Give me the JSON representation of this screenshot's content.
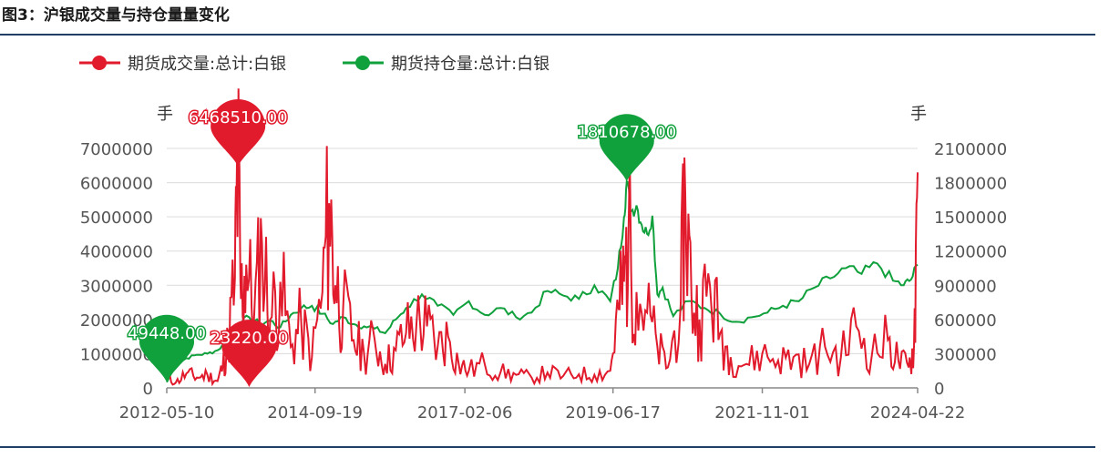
{
  "figure": {
    "title": "图3：沪银成交量与持仓量量变化"
  },
  "colors": {
    "volume": "#e11a2c",
    "open_interest": "#10a03c",
    "grid": "#dcdcdc",
    "axis_text": "#555555"
  },
  "chart_data": {
    "type": "line",
    "title": "",
    "legend": {
      "placement": "top-left",
      "entries": [
        "期货成交量:总计:白银",
        "期货持仓量:总计:白银"
      ]
    },
    "x_tick_labels": [
      "2012-05-10",
      "2014-09-19",
      "2017-02-06",
      "2019-06-17",
      "2021-11-01",
      "2024-04-22"
    ],
    "x_range": [
      "2012-05-10",
      "2024-04-22"
    ],
    "y_left": {
      "unit": "手",
      "ylim": [
        0,
        7000000
      ],
      "ticks": [
        "0",
        "1000000",
        "2000000",
        "3000000",
        "4000000",
        "5000000",
        "6000000",
        "7000000"
      ]
    },
    "y_right": {
      "unit": "手",
      "ylim": [
        0,
        2100000
      ],
      "ticks": [
        "0",
        "300000",
        "600000",
        "900000",
        "1200000",
        "1500000",
        "1800000",
        "2100000"
      ]
    },
    "grid": true,
    "series": [
      {
        "name": "期货成交量:总计:白银",
        "axis": "left",
        "points": [
          [
            "2012-05-10",
            300000
          ],
          [
            "2012-07-01",
            150000
          ],
          [
            "2012-09-01",
            420000
          ],
          [
            "2012-11-01",
            300000
          ],
          [
            "2013-01-01",
            380000
          ],
          [
            "2013-03-01",
            200000
          ],
          [
            "2013-04-01",
            650000
          ],
          [
            "2013-05-01",
            1300000
          ],
          [
            "2013-06-10",
            3200000
          ],
          [
            "2013-06-28",
            6468510
          ],
          [
            "2013-07-15",
            2600000
          ],
          [
            "2013-08-15",
            3600000
          ],
          [
            "2013-10-01",
            2200000
          ],
          [
            "2013-11-15",
            4200000
          ],
          [
            "2014-01-01",
            2000000
          ],
          [
            "2014-03-01",
            3100000
          ],
          [
            "2014-05-01",
            1200000
          ],
          [
            "2014-07-01",
            1900000
          ],
          [
            "2014-09-01",
            900000
          ],
          [
            "2014-11-01",
            2800000
          ],
          [
            "2014-12-10",
            5400000
          ],
          [
            "2015-01-15",
            3000000
          ],
          [
            "2015-03-01",
            2300000
          ],
          [
            "2015-05-01",
            1400000
          ],
          [
            "2015-07-01",
            1000000
          ],
          [
            "2015-09-01",
            1400000
          ],
          [
            "2015-11-01",
            700000
          ],
          [
            "2016-01-01",
            1100000
          ],
          [
            "2016-03-01",
            1600000
          ],
          [
            "2016-05-01",
            1900000
          ],
          [
            "2016-07-01",
            1800000
          ],
          [
            "2016-09-01",
            1200000
          ],
          [
            "2016-11-01",
            1500000
          ],
          [
            "2017-01-01",
            700000
          ],
          [
            "2017-03-01",
            500000
          ],
          [
            "2017-06-01",
            700000
          ],
          [
            "2017-09-01",
            450000
          ],
          [
            "2017-12-01",
            380000
          ],
          [
            "2018-03-01",
            300000
          ],
          [
            "2018-06-01",
            450000
          ],
          [
            "2018-09-01",
            350000
          ],
          [
            "2018-12-01",
            400000
          ],
          [
            "2019-03-01",
            380000
          ],
          [
            "2019-06-01",
            500000
          ],
          [
            "2019-07-20",
            2300000
          ],
          [
            "2019-08-20",
            3100000
          ],
          [
            "2019-09-15",
            4500000
          ],
          [
            "2019-11-01",
            2800000
          ],
          [
            "2020-01-01",
            2200000
          ],
          [
            "2020-03-01",
            1200000
          ],
          [
            "2020-05-01",
            600000
          ],
          [
            "2020-07-15",
            2500000
          ],
          [
            "2020-08-10",
            5700000
          ],
          [
            "2020-09-15",
            2700000
          ],
          [
            "2020-11-01",
            2000000
          ],
          [
            "2021-01-01",
            3000000
          ],
          [
            "2021-03-01",
            1600000
          ],
          [
            "2021-05-01",
            900000
          ],
          [
            "2021-08-01",
            700000
          ],
          [
            "2021-11-01",
            1000000
          ],
          [
            "2022-02-01",
            800000
          ],
          [
            "2022-05-01",
            900000
          ],
          [
            "2022-08-01",
            700000
          ],
          [
            "2022-11-01",
            1200000
          ],
          [
            "2023-02-01",
            900000
          ],
          [
            "2023-05-01",
            1800000
          ],
          [
            "2023-08-01",
            1000000
          ],
          [
            "2023-11-01",
            1400000
          ],
          [
            "2024-01-01",
            800000
          ],
          [
            "2024-03-01",
            600000
          ],
          [
            "2024-04-01",
            1200000
          ],
          [
            "2024-04-22",
            6300000
          ]
        ]
      },
      {
        "name": "期货持仓量:总计:白银",
        "axis": "right",
        "points": [
          [
            "2012-05-10",
            49448
          ],
          [
            "2012-07-01",
            200000
          ],
          [
            "2012-09-01",
            260000
          ],
          [
            "2012-11-01",
            290000
          ],
          [
            "2013-01-01",
            300000
          ],
          [
            "2013-03-01",
            330000
          ],
          [
            "2013-05-01",
            420000
          ],
          [
            "2013-07-01",
            560000
          ],
          [
            "2013-09-01",
            620000
          ],
          [
            "2013-11-01",
            560000
          ],
          [
            "2014-01-01",
            590000
          ],
          [
            "2014-03-01",
            530000
          ],
          [
            "2014-05-01",
            640000
          ],
          [
            "2014-07-01",
            700000
          ],
          [
            "2014-09-01",
            720000
          ],
          [
            "2014-11-01",
            650000
          ],
          [
            "2015-01-01",
            560000
          ],
          [
            "2015-03-01",
            620000
          ],
          [
            "2015-05-01",
            560000
          ],
          [
            "2015-07-01",
            540000
          ],
          [
            "2015-09-01",
            520000
          ],
          [
            "2015-11-01",
            480000
          ],
          [
            "2016-01-01",
            600000
          ],
          [
            "2016-03-01",
            700000
          ],
          [
            "2016-06-01",
            820000
          ],
          [
            "2016-09-01",
            720000
          ],
          [
            "2016-12-01",
            640000
          ],
          [
            "2017-03-01",
            760000
          ],
          [
            "2017-06-01",
            640000
          ],
          [
            "2017-09-01",
            700000
          ],
          [
            "2017-12-01",
            620000
          ],
          [
            "2018-03-01",
            660000
          ],
          [
            "2018-06-01",
            850000
          ],
          [
            "2018-09-01",
            810000
          ],
          [
            "2018-12-01",
            780000
          ],
          [
            "2019-03-01",
            900000
          ],
          [
            "2019-06-01",
            760000
          ],
          [
            "2019-07-15",
            1050000
          ],
          [
            "2019-08-20",
            1500000
          ],
          [
            "2019-09-05",
            1810678
          ],
          [
            "2019-10-01",
            1550000
          ],
          [
            "2019-11-01",
            1600000
          ],
          [
            "2019-12-01",
            1430000
          ],
          [
            "2020-01-01",
            1350000
          ],
          [
            "2020-02-01",
            1510000
          ],
          [
            "2020-03-01",
            820000
          ],
          [
            "2020-04-01",
            880000
          ],
          [
            "2020-06-01",
            630000
          ],
          [
            "2020-09-01",
            760000
          ],
          [
            "2020-12-01",
            700000
          ],
          [
            "2021-03-01",
            650000
          ],
          [
            "2021-06-01",
            580000
          ],
          [
            "2021-09-01",
            620000
          ],
          [
            "2021-12-01",
            660000
          ],
          [
            "2022-03-01",
            720000
          ],
          [
            "2022-06-01",
            760000
          ],
          [
            "2022-09-01",
            880000
          ],
          [
            "2022-12-01",
            960000
          ],
          [
            "2023-03-01",
            1050000
          ],
          [
            "2023-06-01",
            1000000
          ],
          [
            "2023-09-01",
            1090000
          ],
          [
            "2023-12-01",
            940000
          ],
          [
            "2024-02-01",
            900000
          ],
          [
            "2024-03-15",
            950000
          ],
          [
            "2024-04-22",
            1080000
          ]
        ]
      }
    ],
    "markers": [
      {
        "series": 0,
        "type": "max",
        "date": "2013-06-28",
        "value": 6468510,
        "label": "6468510.00"
      },
      {
        "series": 0,
        "type": "min",
        "date": "2013-09-01",
        "value": 23220,
        "label": "23220.00"
      },
      {
        "series": 1,
        "type": "max",
        "date": "2019-09-05",
        "value": 1810678,
        "label": "1810678.00"
      },
      {
        "series": 1,
        "type": "min",
        "date": "2012-05-10",
        "value": 49448,
        "label": "49448.00"
      }
    ]
  }
}
